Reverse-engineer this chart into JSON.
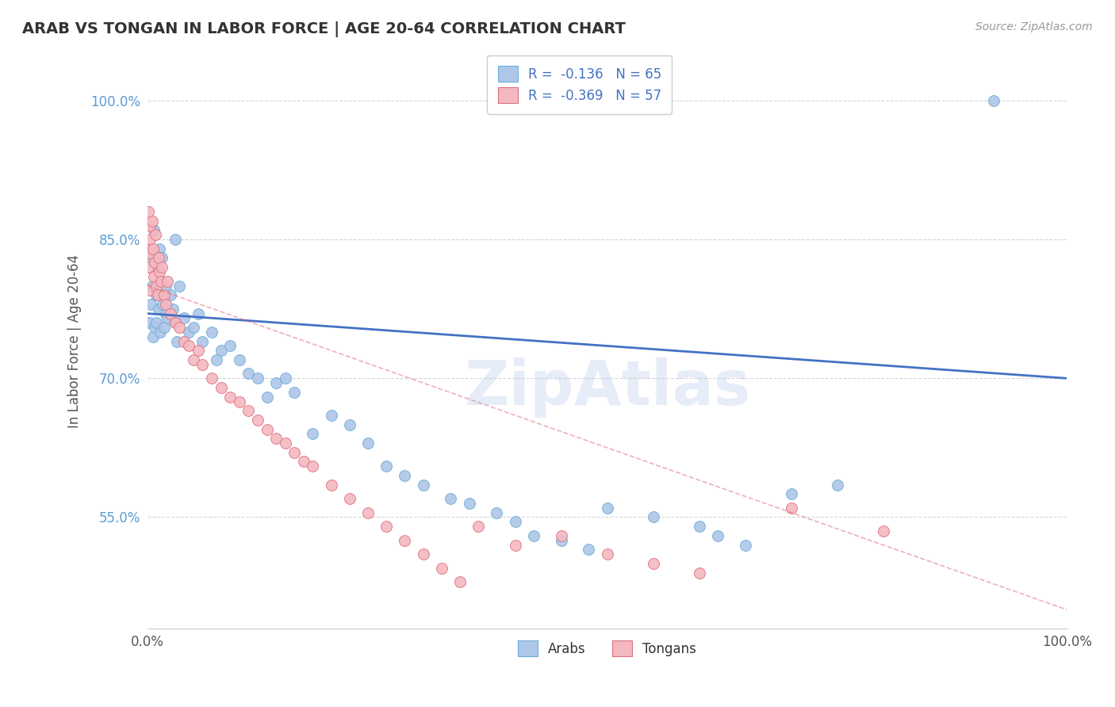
{
  "title": "ARAB VS TONGAN IN LABOR FORCE | AGE 20-64 CORRELATION CHART",
  "source": "Source: ZipAtlas.com",
  "ylabel": "In Labor Force | Age 20-64",
  "xlim": [
    0.0,
    100.0
  ],
  "ylim": [
    43.0,
    105.0
  ],
  "ytick_labels": [
    "55.0%",
    "70.0%",
    "85.0%",
    "100.0%"
  ],
  "ytick_values": [
    55.0,
    70.0,
    85.0,
    100.0
  ],
  "arab_R": -0.136,
  "arab_N": 65,
  "tongan_R": -0.369,
  "tongan_N": 57,
  "arab_color": "#aec6e8",
  "arab_edge_color": "#6aaed6",
  "tongan_color": "#f4b8c0",
  "tongan_edge_color": "#e07080",
  "arab_line_color": "#4472c4",
  "tongan_line_color": "#e07080",
  "background_color": "#ffffff",
  "grid_color": "#cccccc",
  "legend_arab_label": "Arabs",
  "legend_tongan_label": "Tongans",
  "arab_line_y0": 77.0,
  "arab_line_y100": 70.0,
  "tongan_line_y0": 80.0,
  "tongan_line_y100": 45.0,
  "arab_x": [
    0.2,
    0.3,
    0.4,
    0.5,
    0.6,
    0.7,
    0.8,
    0.9,
    1.0,
    1.0,
    1.1,
    1.2,
    1.3,
    1.4,
    1.5,
    1.6,
    1.7,
    1.8,
    2.0,
    2.0,
    2.2,
    2.5,
    2.8,
    3.0,
    3.0,
    3.2,
    3.5,
    4.0,
    4.5,
    5.0,
    5.5,
    6.0,
    7.0,
    7.5,
    8.0,
    9.0,
    10.0,
    11.0,
    12.0,
    13.0,
    14.0,
    15.0,
    16.0,
    18.0,
    20.0,
    22.0,
    24.0,
    26.0,
    28.0,
    30.0,
    33.0,
    35.0,
    38.0,
    40.0,
    42.0,
    45.0,
    48.0,
    50.0,
    55.0,
    60.0,
    62.0,
    65.0,
    70.0,
    75.0,
    92.0
  ],
  "arab_y": [
    76.0,
    83.0,
    78.0,
    80.0,
    74.5,
    86.0,
    75.5,
    83.5,
    79.0,
    76.0,
    82.0,
    77.5,
    84.0,
    75.0,
    80.5,
    83.0,
    78.0,
    75.5,
    80.0,
    77.0,
    76.5,
    79.0,
    77.5,
    76.0,
    85.0,
    74.0,
    80.0,
    76.5,
    75.0,
    75.5,
    77.0,
    74.0,
    75.0,
    72.0,
    73.0,
    73.5,
    72.0,
    70.5,
    70.0,
    68.0,
    69.5,
    70.0,
    68.5,
    64.0,
    66.0,
    65.0,
    63.0,
    60.5,
    59.5,
    58.5,
    57.0,
    56.5,
    55.5,
    54.5,
    53.0,
    52.5,
    51.5,
    56.0,
    55.0,
    54.0,
    53.0,
    52.0,
    57.5,
    58.5,
    100.0
  ],
  "tongan_x": [
    0.05,
    0.1,
    0.15,
    0.2,
    0.25,
    0.3,
    0.4,
    0.5,
    0.6,
    0.7,
    0.8,
    0.9,
    1.0,
    1.1,
    1.2,
    1.3,
    1.5,
    1.6,
    1.8,
    2.0,
    2.2,
    2.5,
    3.0,
    3.5,
    4.0,
    4.5,
    5.0,
    5.5,
    6.0,
    7.0,
    8.0,
    9.0,
    10.0,
    11.0,
    12.0,
    13.0,
    14.0,
    15.0,
    16.0,
    17.0,
    18.0,
    20.0,
    22.0,
    24.0,
    26.0,
    28.0,
    30.0,
    32.0,
    34.0,
    36.0,
    40.0,
    45.0,
    50.0,
    55.0,
    60.0,
    70.0,
    80.0
  ],
  "tongan_y": [
    84.0,
    88.0,
    82.0,
    79.5,
    86.5,
    85.0,
    83.5,
    87.0,
    84.0,
    81.0,
    82.5,
    85.5,
    80.0,
    79.0,
    83.0,
    81.5,
    80.5,
    82.0,
    79.0,
    78.0,
    80.5,
    77.0,
    76.0,
    75.5,
    74.0,
    73.5,
    72.0,
    73.0,
    71.5,
    70.0,
    69.0,
    68.0,
    67.5,
    66.5,
    65.5,
    64.5,
    63.5,
    63.0,
    62.0,
    61.0,
    60.5,
    58.5,
    57.0,
    55.5,
    54.0,
    52.5,
    51.0,
    49.5,
    48.0,
    54.0,
    52.0,
    53.0,
    51.0,
    50.0,
    49.0,
    56.0,
    53.5
  ]
}
